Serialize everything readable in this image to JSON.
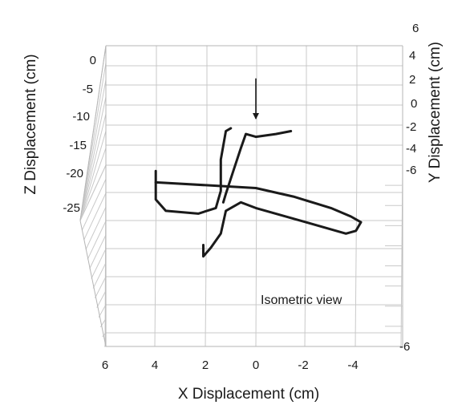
{
  "chart_data": {
    "type": "line",
    "projection": "3d",
    "title": "",
    "xlabel": "X Displacement (cm)",
    "ylabel": "Y Displacement (cm)",
    "zlabel": "Z Displacement (cm)",
    "x_ticks": [
      "6",
      "4",
      "2",
      "0",
      "-2",
      "-4"
    ],
    "y_ticks_top": [
      "6",
      "4",
      "2",
      "0",
      "-2",
      "-4",
      "-6"
    ],
    "y_ticks_bottom": [
      "-6"
    ],
    "z_ticks": [
      "0",
      "-5",
      "-10",
      "-15",
      "-20",
      "-25"
    ],
    "xlim": [
      6,
      -6
    ],
    "ylim": [
      -6,
      6
    ],
    "zlim": [
      -30,
      0
    ],
    "grid": true,
    "annotation": "Isometric view",
    "series": [
      {
        "points": [
          [
            4.0,
            -2.0,
            -22.0
          ],
          [
            4.0,
            -2.0,
            -25.5
          ],
          [
            4.0,
            -2.0,
            -27.0
          ],
          [
            3.6,
            -2.0,
            -29.0
          ],
          [
            2.3,
            -2.0,
            -29.5
          ],
          [
            1.6,
            -2.0,
            -28.5
          ],
          [
            1.4,
            -2.0,
            -25.5
          ],
          [
            1.4,
            -2.0,
            -20.0
          ],
          [
            1.2,
            -2.0,
            -15.0
          ],
          [
            1.0,
            -2.0,
            -14.5
          ]
        ]
      },
      {
        "points": [
          [
            4.0,
            -2.0,
            -24.0
          ],
          [
            2.0,
            -2.0,
            -24.5
          ],
          [
            0.0,
            -2.0,
            -25.0
          ],
          [
            -1.5,
            -2.0,
            -26.5
          ],
          [
            -3.0,
            -2.0,
            -28.5
          ],
          [
            -3.8,
            -2.0,
            -30.0
          ],
          [
            -4.2,
            -2.0,
            -31.0
          ],
          [
            -4.0,
            -2.0,
            -32.5
          ],
          [
            -3.6,
            -2.0,
            -33.0
          ],
          [
            -2.0,
            -2.0,
            -31.0
          ],
          [
            0.0,
            -2.0,
            -28.5
          ],
          [
            0.6,
            -2.0,
            -27.5
          ],
          [
            1.2,
            -2.0,
            -29.0
          ],
          [
            1.4,
            -2.0,
            -33.0
          ],
          [
            1.8,
            -2.0,
            -35.5
          ],
          [
            2.1,
            -2.0,
            -37.0
          ],
          [
            2.1,
            -2.0,
            -35.0
          ]
        ]
      },
      {
        "points": [
          [
            0.0,
            -2.0,
            -16.0
          ],
          [
            0.4,
            -2.0,
            -15.5
          ],
          [
            0.6,
            -2.0,
            -18.0
          ],
          [
            0.9,
            -2.0,
            -22.0
          ],
          [
            1.2,
            -2.0,
            -26.0
          ],
          [
            1.3,
            -2.0,
            -27.5
          ]
        ]
      },
      {
        "points": [
          [
            0.0,
            -2.0,
            -16.0
          ],
          [
            -0.8,
            -2.0,
            -15.5
          ],
          [
            -1.4,
            -2.0,
            -15.0
          ]
        ]
      }
    ],
    "marker": {
      "type": "arrow",
      "x": 0.0,
      "z_from": -12.5,
      "z_to": -14.5
    }
  }
}
